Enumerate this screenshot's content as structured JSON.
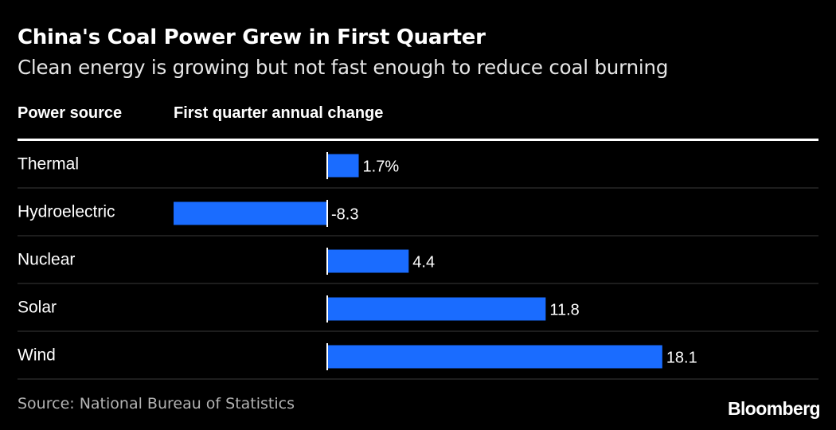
{
  "title": "China's Coal Power Grew in First Quarter",
  "subtitle": "Clean energy is growing but not fast enough to reduce coal burning",
  "columns": {
    "source": "Power source",
    "change": "First quarter annual change"
  },
  "footer": {
    "source": "Source: National Bureau of Statistics",
    "brand": "Bloomberg"
  },
  "colors": {
    "background": "#000000",
    "bar": "#1a6cff",
    "text": "#ffffff",
    "rule": "#3a3a3a",
    "source_text": "#b3b3b3"
  },
  "chart_data": {
    "type": "bar",
    "orientation": "horizontal",
    "title": "China's Coal Power Grew in First Quarter",
    "subtitle": "Clean energy is growing but not fast enough to reduce coal burning",
    "xlabel": "First quarter annual change",
    "ylabel": "Power source",
    "unit": "%",
    "categories": [
      "Thermal",
      "Hydroelectric",
      "Nuclear",
      "Solar",
      "Wind"
    ],
    "values": [
      1.7,
      -8.3,
      4.4,
      11.8,
      18.1
    ],
    "labels": [
      "1.7%",
      "-8.3",
      "4.4",
      "11.8",
      "18.1"
    ],
    "xlim": [
      -8.3,
      18.1
    ],
    "grid": false,
    "legend": "none"
  }
}
